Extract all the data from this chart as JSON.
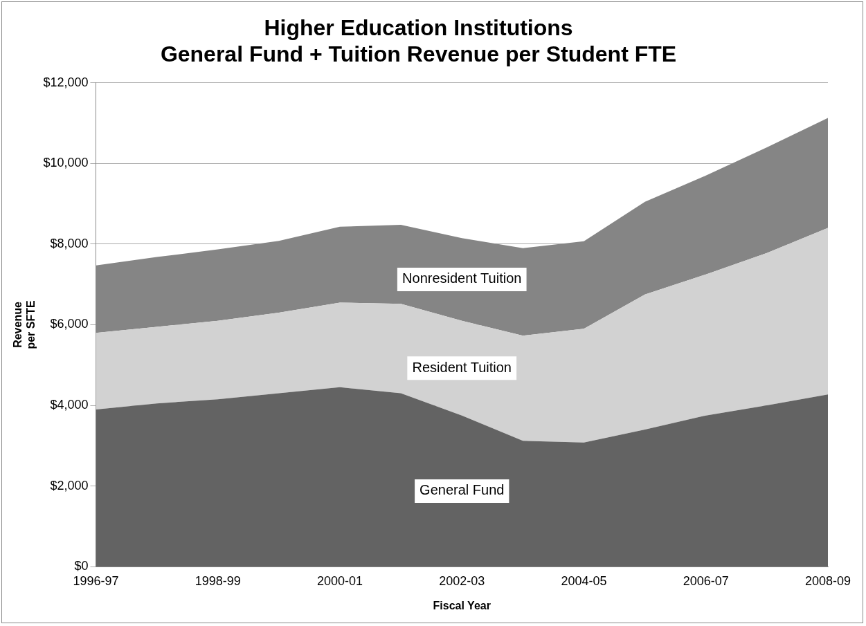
{
  "chart_data": {
    "type": "area",
    "title": "Higher Education Institutions\nGeneral Fund + Tuition Revenue per Student FTE",
    "xlabel": "Fiscal Year",
    "ylabel": "Revenue\nper SFTE",
    "categories": [
      "1996-97",
      null,
      "1998-99",
      null,
      "2000-01",
      null,
      "2002-03",
      null,
      "2004-05",
      null,
      "2006-07",
      null,
      "2008-09"
    ],
    "stacked": true,
    "series": [
      {
        "name": "General Fund",
        "color": "#636363",
        "values": [
          3900,
          4050,
          4150,
          4300,
          4450,
          4300,
          3750,
          3120,
          3080,
          3400,
          3750,
          4000,
          4270
        ]
      },
      {
        "name": "Resident Tuition",
        "color": "#d2d2d2",
        "values": [
          1900,
          1900,
          1950,
          2000,
          2100,
          2220,
          2350,
          2610,
          2820,
          3350,
          3500,
          3780,
          4130
        ]
      },
      {
        "name": "Nonresident Tuition",
        "color": "#858585",
        "values": [
          1670,
          1730,
          1770,
          1780,
          1880,
          1960,
          2050,
          2170,
          2170,
          2300,
          2450,
          2620,
          2730
        ]
      }
    ],
    "ylim": [
      0,
      12000
    ],
    "yticks": [
      {
        "value": 0,
        "label": "$0"
      },
      {
        "value": 2000,
        "label": "$2,000"
      },
      {
        "value": 4000,
        "label": "$4,000"
      },
      {
        "value": 6000,
        "label": "$6,000"
      },
      {
        "value": 8000,
        "label": "$8,000"
      },
      {
        "value": 10000,
        "label": "$10,000"
      },
      {
        "value": 12000,
        "label": "$12,000"
      }
    ],
    "grid": "y",
    "legend": false
  }
}
